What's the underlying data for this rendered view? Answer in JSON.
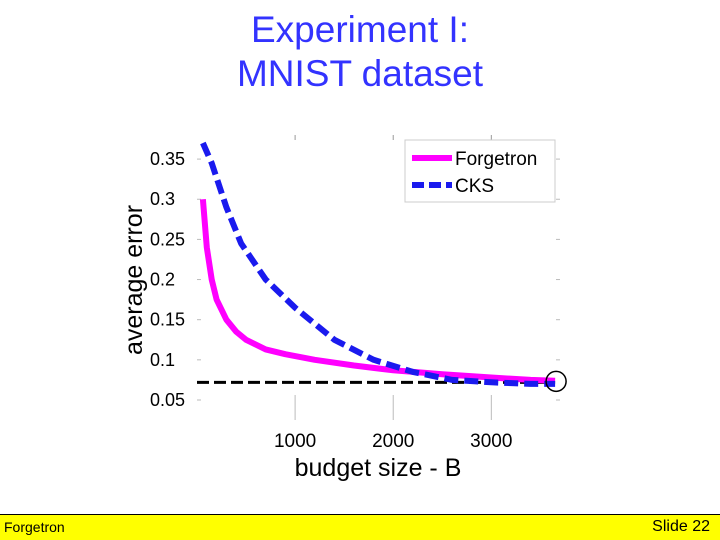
{
  "slide": {
    "title_line1": "Experiment I:",
    "title_line2": "MNIST dataset",
    "footer_left": "Forgetron",
    "footer_right": "Slide 22"
  },
  "colors": {
    "title": "#3333ff",
    "forgetron": "#ff00ff",
    "cks": "#1a1aee",
    "reference": "#000000",
    "footer_bg": "#ffff00"
  },
  "chart_data": {
    "type": "line",
    "title": "",
    "xlabel": "budget size - B",
    "ylabel": "average error",
    "xlim": [
      0,
      3700
    ],
    "ylim": [
      0.05,
      0.38
    ],
    "xticks": [
      1000,
      2000,
      3000
    ],
    "xtick_labels": [
      "1000",
      "2000",
      "3000"
    ],
    "yticks": [
      0.05,
      0.1,
      0.15,
      0.2,
      0.25,
      0.3,
      0.35
    ],
    "ytick_labels": [
      "0.05",
      "0.1",
      "0.15",
      "0.2",
      "0.25",
      "0.3",
      "0.35"
    ],
    "grid": false,
    "legend": "top-right",
    "series": [
      {
        "name": "Forgetron",
        "style": "solid",
        "x": [
          60,
          100,
          150,
          200,
          300,
          400,
          500,
          700,
          900,
          1200,
          1600,
          2000,
          2500,
          3000,
          3400,
          3650
        ],
        "y": [
          0.3,
          0.24,
          0.2,
          0.175,
          0.15,
          0.135,
          0.125,
          0.113,
          0.107,
          0.1,
          0.093,
          0.087,
          0.082,
          0.078,
          0.075,
          0.074
        ]
      },
      {
        "name": "CKS",
        "style": "dashed",
        "x": [
          60,
          150,
          300,
          450,
          700,
          1000,
          1400,
          1800,
          2200,
          2600,
          3000,
          3400,
          3650
        ],
        "y": [
          0.37,
          0.345,
          0.29,
          0.245,
          0.2,
          0.165,
          0.125,
          0.1,
          0.085,
          0.075,
          0.072,
          0.07,
          0.07
        ]
      }
    ],
    "reference_line": {
      "y": 0.072,
      "x_range": [
        0,
        3650
      ],
      "style": "dashed"
    },
    "annotation": {
      "type": "circle",
      "x": 3650,
      "y": 0.072
    }
  }
}
